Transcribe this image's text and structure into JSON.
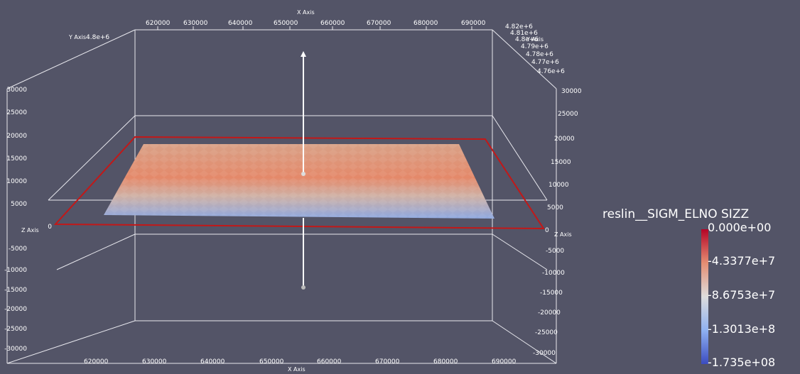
{
  "axes": {
    "x_title": "X Axis",
    "y_title": "Y Axis",
    "z_title": "Z Axis",
    "x_ticks": [
      "620000",
      "630000",
      "640000",
      "650000",
      "660000",
      "670000",
      "680000",
      "690000"
    ],
    "y_ticks": [
      "4.82e+6",
      "4.81e+6",
      "4.8e+6",
      "4.79e+6",
      "4.78e+6",
      "4.77e+6",
      "4.76e+6"
    ],
    "y_tick_left": "4.8e+6",
    "z_ticks_left": [
      "30000",
      "25000",
      "20000",
      "15000",
      "10000",
      "5000",
      "0",
      "-5000",
      "-10000",
      "-15000",
      "-20000",
      "-25000",
      "-30000"
    ],
    "z_ticks_right": [
      "30000",
      "25000",
      "20000",
      "15000",
      "10000",
      "5000",
      "0",
      "-5000",
      "-10000",
      "-15000",
      "-20000",
      "-25000",
      "-30000"
    ]
  },
  "legend": {
    "title": "reslin__SIGM_ELNO SIZZ",
    "labels": [
      "0.000e+00",
      "-4.3377e+7",
      "-8.6753e+7",
      "-1.3013e+8",
      "-1.735e+08"
    ],
    "color_max": "#b40426",
    "color_mid": "#dddcdc",
    "color_min": "#3b4cc0"
  },
  "scene": {
    "background": "#535467",
    "outline_color": "#cc1f1f",
    "surface_top_color": "#e08464",
    "surface_bottom_color": "#8aa7e6"
  }
}
